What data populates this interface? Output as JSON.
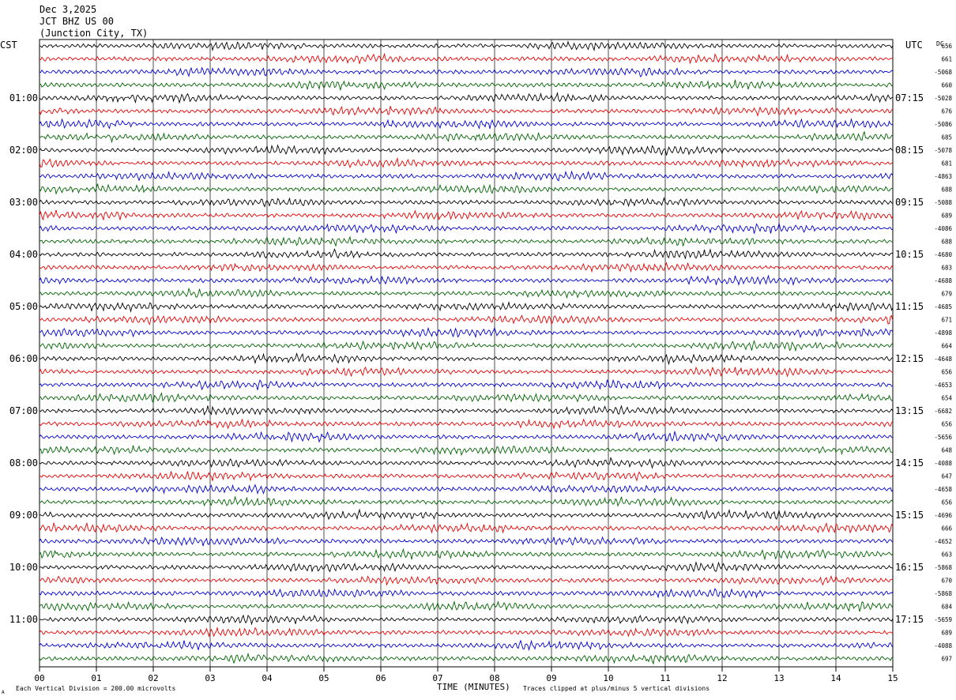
{
  "header": {
    "date": "Dec 3,2025",
    "station": "JCT BHZ US 00",
    "location": "(Junction City, TX)"
  },
  "left_axis_title": "CST",
  "right_axis_title": "UTC",
  "dc_label": "DC",
  "footer": {
    "scale_note": "Each Vertical Division =  200.00 microvolts",
    "xlabel": "TIME (MINUTES)",
    "clip_note": "Traces clipped at plus/minus 5 vertical divisions",
    "corner_mark": "A"
  },
  "colors": [
    "#000000",
    "#e60000",
    "#0000d0",
    "#006400"
  ],
  "chart_data": {
    "type": "line",
    "x_ticks": [
      "00",
      "01",
      "02",
      "03",
      "04",
      "05",
      "06",
      "07",
      "08",
      "09",
      "10",
      "11",
      "12",
      "13",
      "14",
      "15"
    ],
    "xlim": [
      0,
      15
    ],
    "left_hour_labels": [
      "01:00",
      "02:00",
      "03:00",
      "04:00",
      "05:00",
      "06:00",
      "07:00",
      "08:00",
      "09:00",
      "10:00",
      "11:00"
    ],
    "right_hour_labels": [
      "07:15",
      "08:15",
      "09:15",
      "10:15",
      "11:15",
      "12:15",
      "13:15",
      "14:15",
      "15:15",
      "16:15",
      "17:15"
    ],
    "dc_offsets": [
      "656",
      "661",
      "-5068",
      "660",
      "-5028",
      "676",
      "-5086",
      "685",
      "-5078",
      "681",
      "-4863",
      "688",
      "-5088",
      "689",
      "-4086",
      "688",
      "-4680",
      "683",
      "-4688",
      "679",
      "-4685",
      "671",
      "-4898",
      "664",
      "-4648",
      "656",
      "-4653",
      "654",
      "-6682",
      "656",
      "-5656",
      "648",
      "-4088",
      "647",
      "-4658",
      "656",
      "-4696",
      "666",
      "-4652",
      "663",
      "-5868",
      "670",
      "-5868",
      "684",
      "-5659",
      "689",
      "-4088",
      "697"
    ],
    "grid": true
  }
}
